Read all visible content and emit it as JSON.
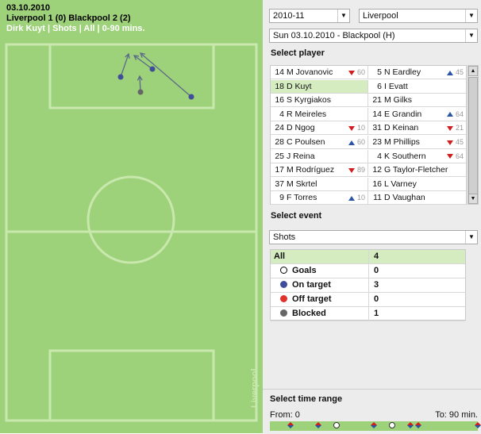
{
  "match": {
    "date": "03.10.2010",
    "score": "Liverpool 1 (0) Blackpool 2 (2)",
    "filter": "Dirk Kuyt | Shots | All | 0-90 mins."
  },
  "team_watermark": "Liverpool",
  "selects": {
    "season": "2010-11",
    "team": "Liverpool",
    "fixture": "Sun 03.10.2010 - Blackpool (H)"
  },
  "select_player_title": "Select player",
  "players": [
    {
      "left": {
        "num": "14",
        "name": "M Jovanovic",
        "sub": "down",
        "min": "60"
      },
      "right": {
        "num": "5",
        "name": "N Eardley",
        "sub": "up",
        "min": "45"
      }
    },
    {
      "left": {
        "num": "18",
        "name": "D Kuyt",
        "sub": "",
        "min": "",
        "selected": true
      },
      "right": {
        "num": "6",
        "name": "I Evatt",
        "sub": "",
        "min": ""
      }
    },
    {
      "left": {
        "num": "16",
        "name": "S Kyrgiakos",
        "sub": "",
        "min": ""
      },
      "right": {
        "num": "21",
        "name": "M Gilks",
        "sub": "",
        "min": ""
      }
    },
    {
      "left": {
        "num": "4",
        "name": "R Meireles",
        "sub": "",
        "min": ""
      },
      "right": {
        "num": "14",
        "name": "E Grandin",
        "sub": "up",
        "min": "64"
      }
    },
    {
      "left": {
        "num": "24",
        "name": "D Ngog",
        "sub": "down",
        "min": "10"
      },
      "right": {
        "num": "31",
        "name": "D Keinan",
        "sub": "down",
        "min": "21"
      }
    },
    {
      "left": {
        "num": "28",
        "name": "C Poulsen",
        "sub": "up",
        "min": "60"
      },
      "right": {
        "num": "23",
        "name": "M Phillips",
        "sub": "down",
        "min": "45"
      }
    },
    {
      "left": {
        "num": "25",
        "name": "J Reina",
        "sub": "",
        "min": ""
      },
      "right": {
        "num": "4",
        "name": "K Southern",
        "sub": "down",
        "min": "64"
      }
    },
    {
      "left": {
        "num": "17",
        "name": "M Rodríguez",
        "sub": "down",
        "min": "89"
      },
      "right": {
        "num": "12",
        "name": "G Taylor-Fletcher",
        "sub": "",
        "min": ""
      }
    },
    {
      "left": {
        "num": "37",
        "name": "M Skrtel",
        "sub": "",
        "min": ""
      },
      "right": {
        "num": "16",
        "name": "L Varney",
        "sub": "",
        "min": ""
      }
    },
    {
      "left": {
        "num": "9",
        "name": "F Torres",
        "sub": "up",
        "min": "10"
      },
      "right": {
        "num": "11",
        "name": "D Vaughan",
        "sub": "",
        "min": ""
      }
    }
  ],
  "select_event_title": "Select event",
  "event_select": "Shots",
  "events": [
    {
      "label": "All",
      "value": "4",
      "marker": ""
    },
    {
      "label": "Goals",
      "value": "0",
      "marker": "goal"
    },
    {
      "label": "On target",
      "value": "3",
      "marker": "on-target"
    },
    {
      "label": "Off target",
      "value": "0",
      "marker": "off-target"
    },
    {
      "label": "Blocked",
      "value": "1",
      "marker": "blocked"
    }
  ],
  "colors": {
    "pitch": "#9ed27a",
    "pitch_lines": "#c8e8ad",
    "on_target": "#3f4d9a",
    "off_target": "#e0312c",
    "blocked": "#666666",
    "selected_row": "#d4ecc0",
    "sub_on": "#2a55a3",
    "sub_off": "#d11d1d"
  },
  "time_range": {
    "title": "Select time range",
    "from_label": "From: 0",
    "to_label": "To: 90 min."
  }
}
